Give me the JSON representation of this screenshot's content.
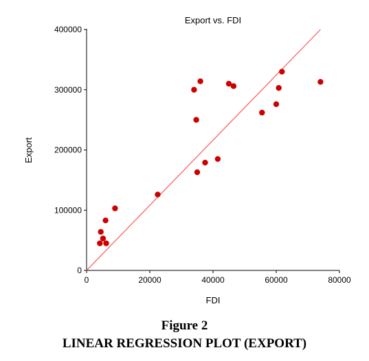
{
  "chart_data": {
    "type": "scatter",
    "title": "Export vs. FDI",
    "xlabel": "FDI",
    "ylabel": "Export",
    "xlim": [
      0,
      80000
    ],
    "ylim": [
      0,
      400000
    ],
    "x_ticks": [
      "0",
      "20000",
      "40000",
      "60000",
      "80000"
    ],
    "y_ticks": [
      "0",
      "100000",
      "200000",
      "300000",
      "400000"
    ],
    "grid": false,
    "legend": "none",
    "point_color": "#cc0000",
    "line_color": "#ff5555",
    "fit_line": {
      "x": [
        0,
        74000
      ],
      "y": [
        0,
        400000
      ]
    },
    "points": [
      {
        "x": 4200,
        "y": 45000
      },
      {
        "x": 4500,
        "y": 64000
      },
      {
        "x": 5200,
        "y": 53000
      },
      {
        "x": 6000,
        "y": 83000
      },
      {
        "x": 6200,
        "y": 45000
      },
      {
        "x": 9000,
        "y": 103000
      },
      {
        "x": 22500,
        "y": 126000
      },
      {
        "x": 34000,
        "y": 300000
      },
      {
        "x": 34700,
        "y": 250000
      },
      {
        "x": 35000,
        "y": 163000
      },
      {
        "x": 36000,
        "y": 314000
      },
      {
        "x": 37500,
        "y": 179000
      },
      {
        "x": 41500,
        "y": 185000
      },
      {
        "x": 45000,
        "y": 310000
      },
      {
        "x": 46500,
        "y": 306000
      },
      {
        "x": 55500,
        "y": 262000
      },
      {
        "x": 60000,
        "y": 276000
      },
      {
        "x": 60800,
        "y": 303000
      },
      {
        "x": 61800,
        "y": 330000
      },
      {
        "x": 74000,
        "y": 313000
      }
    ]
  },
  "caption": {
    "figure_label": "Figure 2",
    "title": "LINEAR REGRESSION PLOT (EXPORT)"
  }
}
